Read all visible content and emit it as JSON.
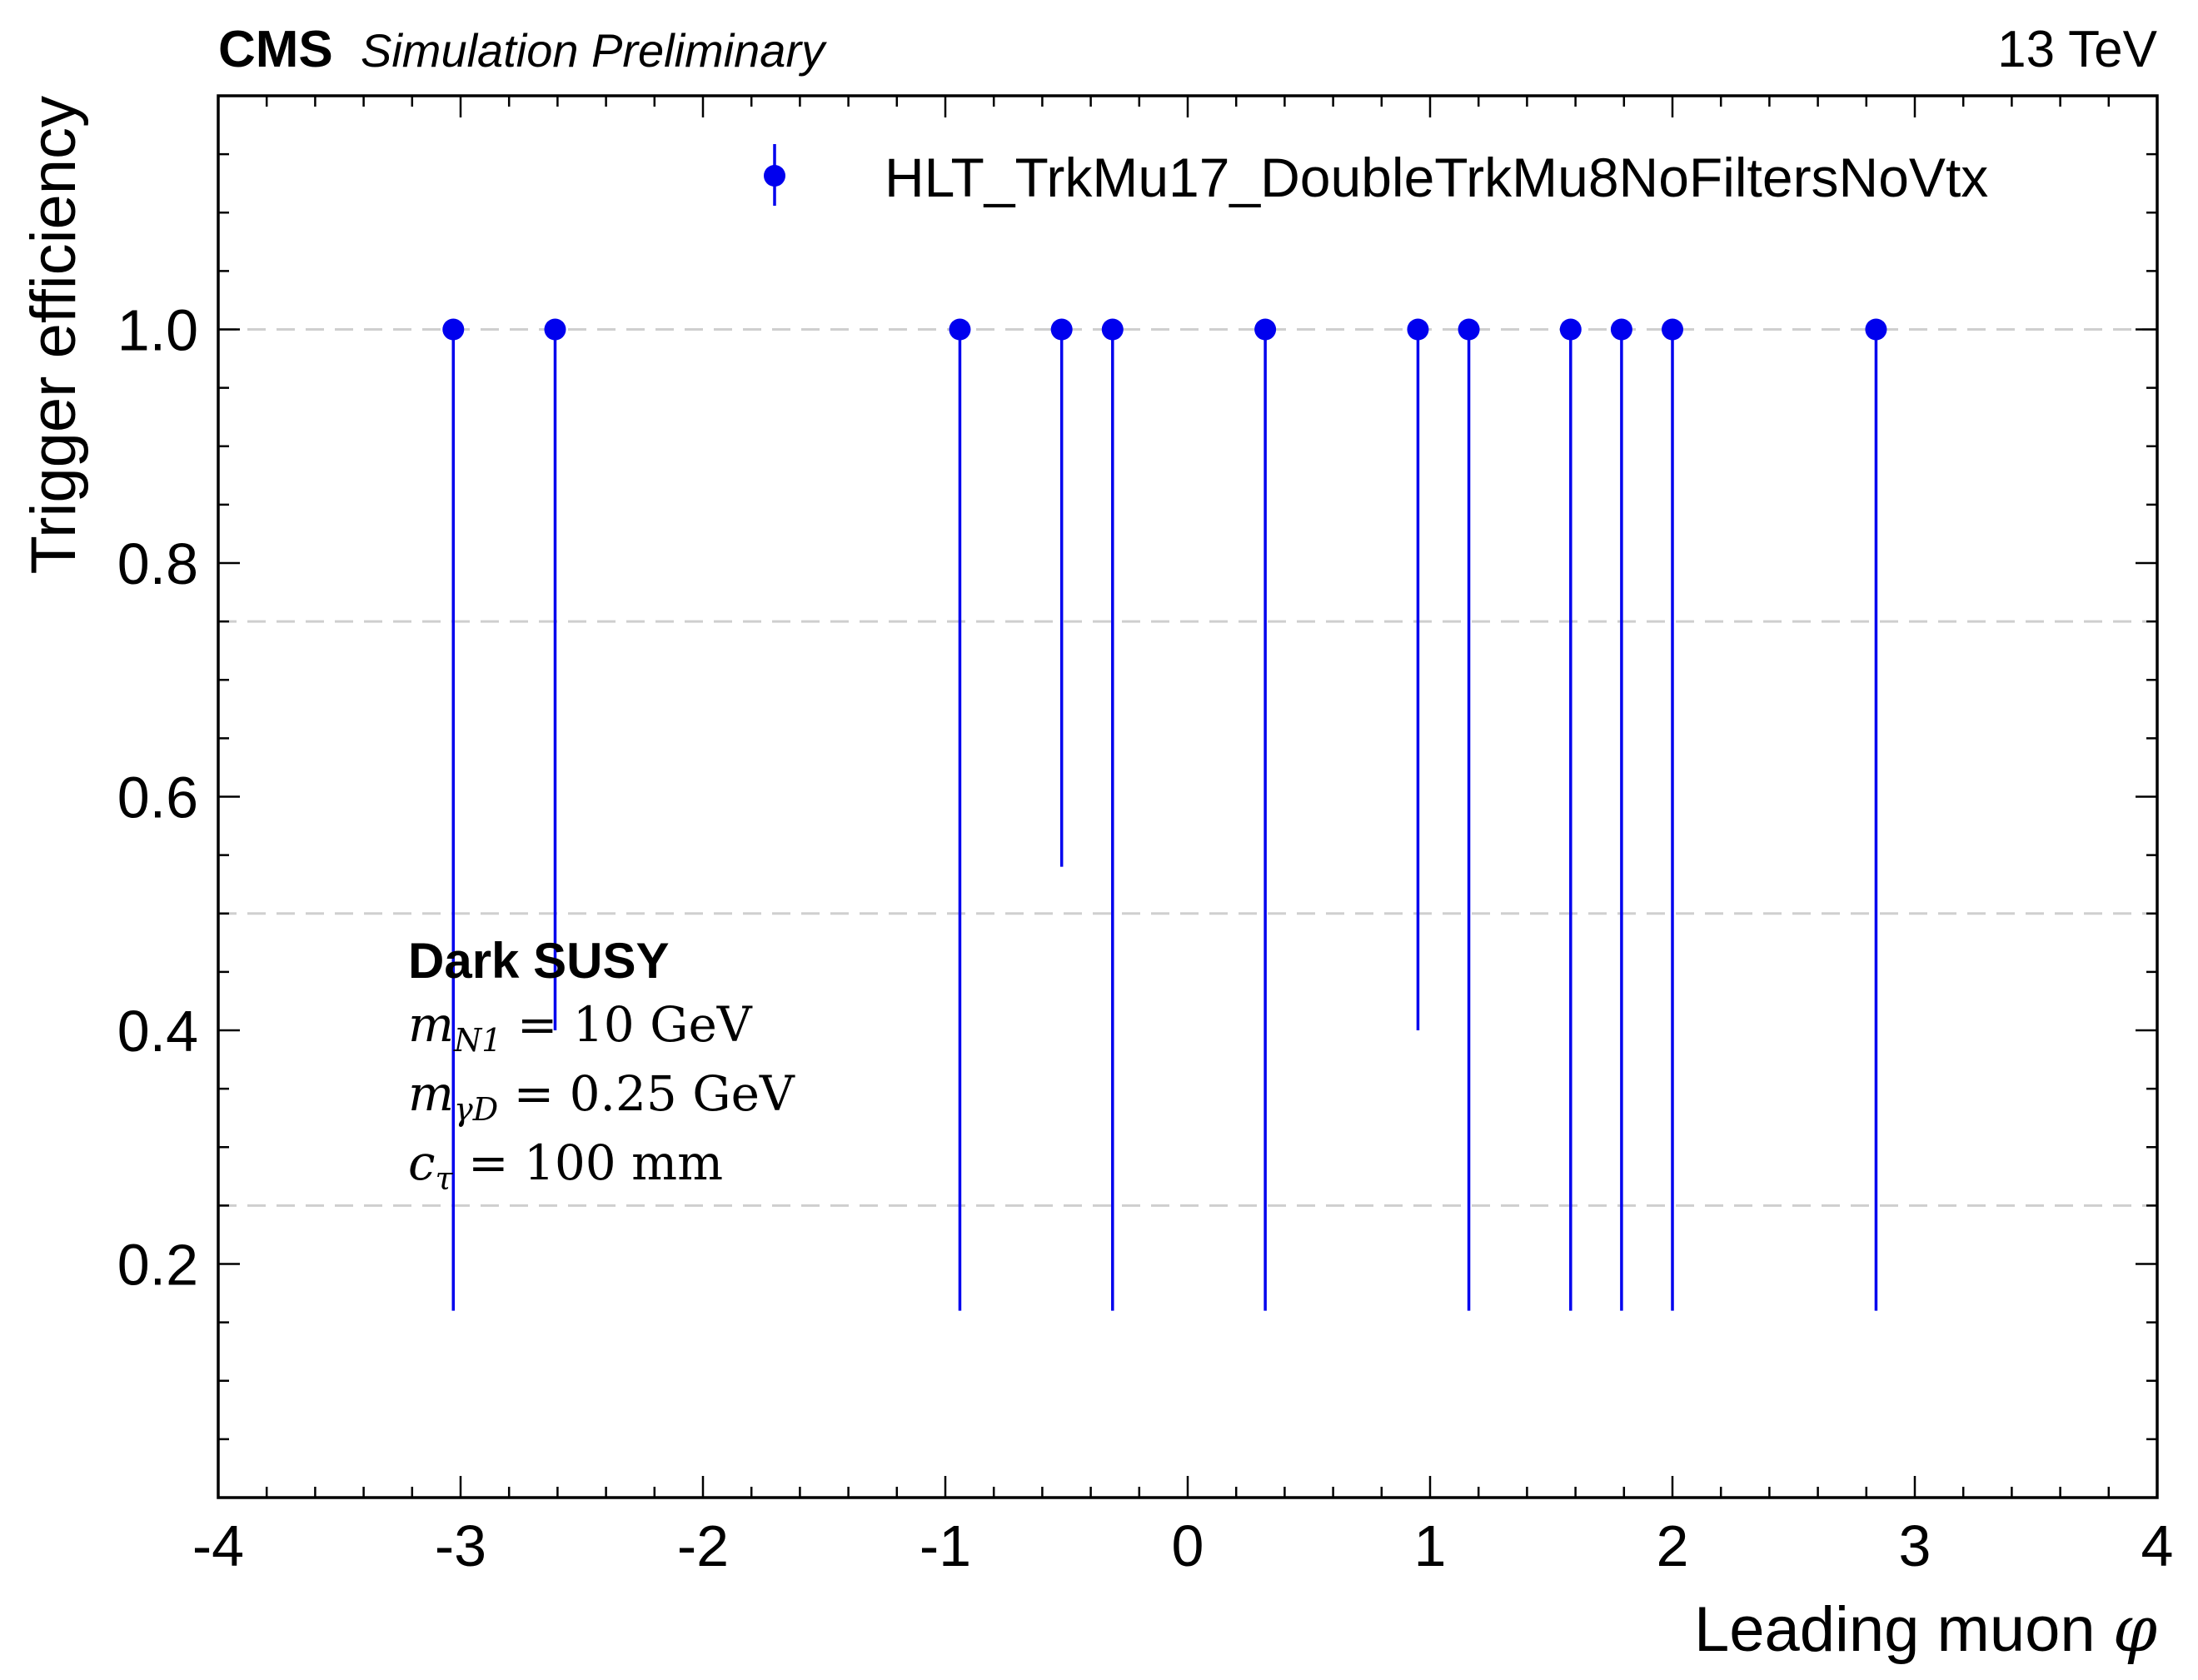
{
  "header": {
    "experiment": "CMS",
    "status": "Simulation Preliminary",
    "energy": "13 TeV"
  },
  "annotation": {
    "title": "Dark SUSY",
    "line_1": {
      "sym": "m",
      "sub": "N1",
      "rest": " = 10 GeV"
    },
    "line_2": {
      "sym": "m",
      "sub": "γD",
      "rest": " = 0.25 GeV"
    },
    "line_3": {
      "sym": "c",
      "sub": "τ",
      "rest": " = 100 mm"
    }
  },
  "colors": {
    "series": "#0000ee",
    "grid": "#cfcfcf",
    "axis": "#000000"
  },
  "chart_data": {
    "type": "scatter",
    "xlabel_text": "Leading muon ",
    "xlabel_symbol": "φ",
    "ylabel": "Trigger efficiency",
    "xlim": [
      -4,
      4
    ],
    "ylim": [
      0,
      1.2
    ],
    "x_ticks": [
      -4,
      -3,
      -2,
      -1,
      0,
      1,
      2,
      3,
      4
    ],
    "x_tick_labels": [
      "-4",
      "-3",
      "-2",
      "-1",
      "0",
      "1",
      "2",
      "3",
      "4"
    ],
    "y_ticks": [
      0.2,
      0.4,
      0.6,
      0.8,
      1.0
    ],
    "y_tick_labels": [
      "0.2",
      "0.4",
      "0.6",
      "0.8",
      "1.0"
    ],
    "grid": "horizontal dashed at 0.25, 0.5, 0.75, 1.0",
    "legend_position": "top-right",
    "series": [
      {
        "name": "HLT_TrkMu17_DoubleTrkMu8NoFiltersNoVtx",
        "marker": "circle with vertical error bars",
        "points": [
          {
            "x": -3.03,
            "y": 1.0,
            "y_low": 0.16
          },
          {
            "x": -2.61,
            "y": 1.0,
            "y_low": 0.4
          },
          {
            "x": -0.94,
            "y": 1.0,
            "y_low": 0.16
          },
          {
            "x": -0.52,
            "y": 1.0,
            "y_low": 0.54
          },
          {
            "x": -0.31,
            "y": 1.0,
            "y_low": 0.16
          },
          {
            "x": 0.32,
            "y": 1.0,
            "y_low": 0.16
          },
          {
            "x": 0.95,
            "y": 1.0,
            "y_low": 0.4
          },
          {
            "x": 1.16,
            "y": 1.0,
            "y_low": 0.16
          },
          {
            "x": 1.58,
            "y": 1.0,
            "y_low": 0.16
          },
          {
            "x": 1.79,
            "y": 1.0,
            "y_low": 0.16
          },
          {
            "x": 2.0,
            "y": 1.0,
            "y_low": 0.16
          },
          {
            "x": 2.84,
            "y": 1.0,
            "y_low": 0.16
          }
        ]
      }
    ]
  }
}
